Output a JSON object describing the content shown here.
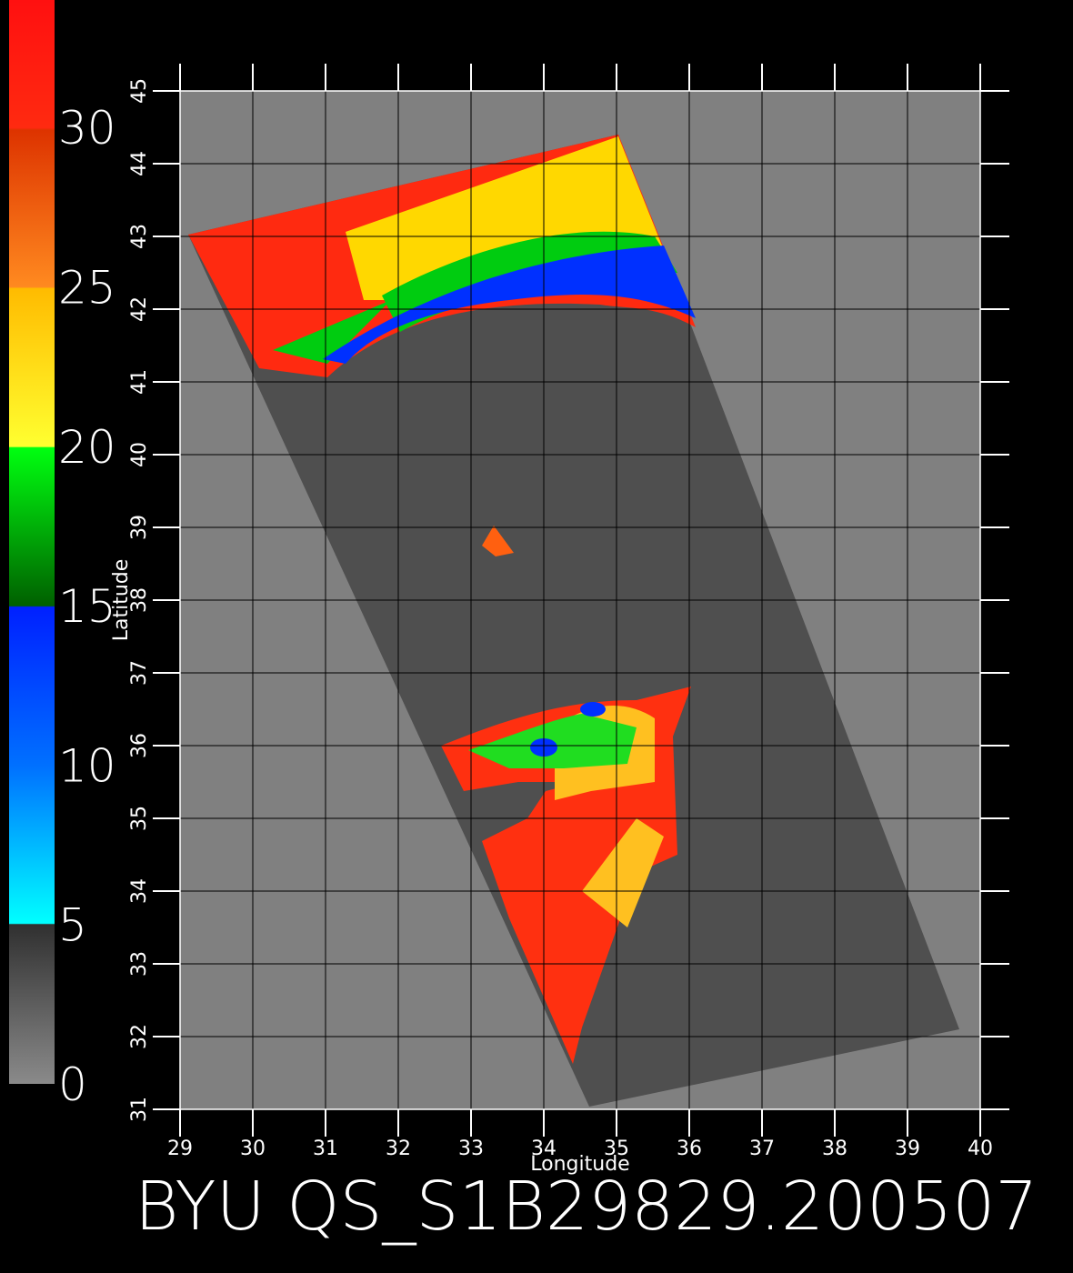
{
  "chart_data": {
    "type": "map",
    "title": "BYU QS_S1B29829.200507",
    "xlabel": "Longitude",
    "ylabel": "Latitude",
    "xlim": [
      29,
      40
    ],
    "ylim": [
      31,
      45
    ],
    "xticks": [
      29,
      30,
      31,
      32,
      33,
      34,
      35,
      36,
      37,
      38,
      39,
      40
    ],
    "yticks": [
      31,
      32,
      33,
      34,
      35,
      36,
      37,
      38,
      39,
      40,
      41,
      42,
      43,
      44,
      45
    ],
    "clim": [
      0,
      34
    ],
    "cticks": [
      0,
      5,
      10,
      15,
      20,
      25,
      30
    ],
    "grid": true
  }
}
